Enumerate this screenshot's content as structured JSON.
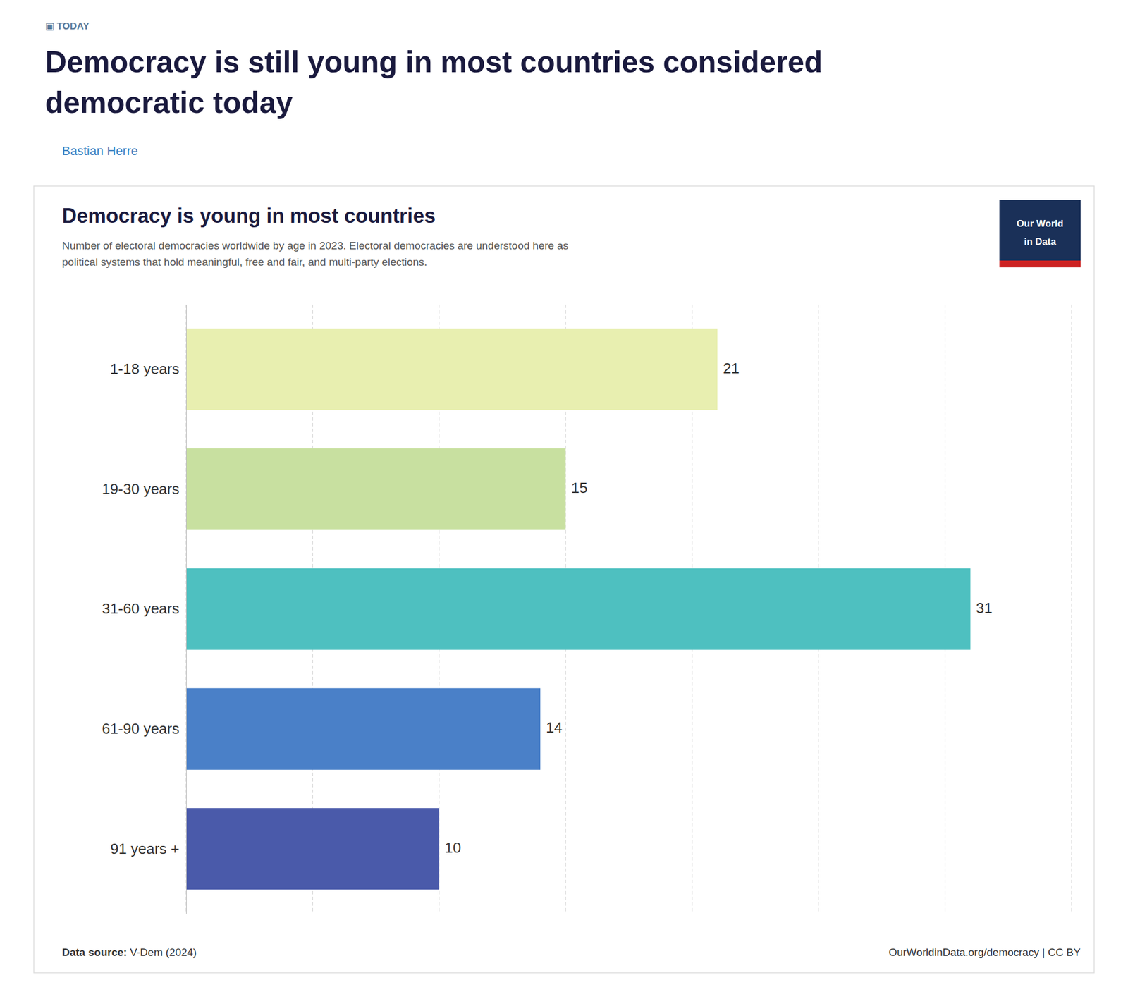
{
  "kicker": "▣ TODAY",
  "page_title": [
    "Democracy is still young in most countries considered",
    "democratic today"
  ],
  "author": "Bastian Herre",
  "logo": [
    "Our World",
    "in Data"
  ],
  "source_label": "Data source:",
  "source": " V-Dem (2024)",
  "url": "OurWorldinData.org/democracy | CC BY",
  "chart_data": {
    "type": "bar",
    "orientation": "horizontal",
    "title": "Democracy is young in most countries",
    "subtitle": "Number of electoral democracies worldwide by age in 2023. Electoral democracies are understood here as\npolitical systems that hold meaningful, free and fair, and multi-party elections.",
    "categories": [
      "1-18 years",
      "19-30 years",
      "31-60 years",
      "61-90 years",
      "91 years +"
    ],
    "values": [
      21,
      15,
      31,
      14,
      10
    ],
    "colors": [
      "#e8efb0",
      "#c8e0a0",
      "#4ec0c0",
      "#4a80c8",
      "#4a5aaa"
    ],
    "xlim": [
      0,
      35
    ],
    "xticks": [
      0,
      5,
      10,
      15,
      20,
      25,
      30,
      35
    ],
    "grid": true,
    "data_labels": true,
    "tick_labels": "y"
  }
}
